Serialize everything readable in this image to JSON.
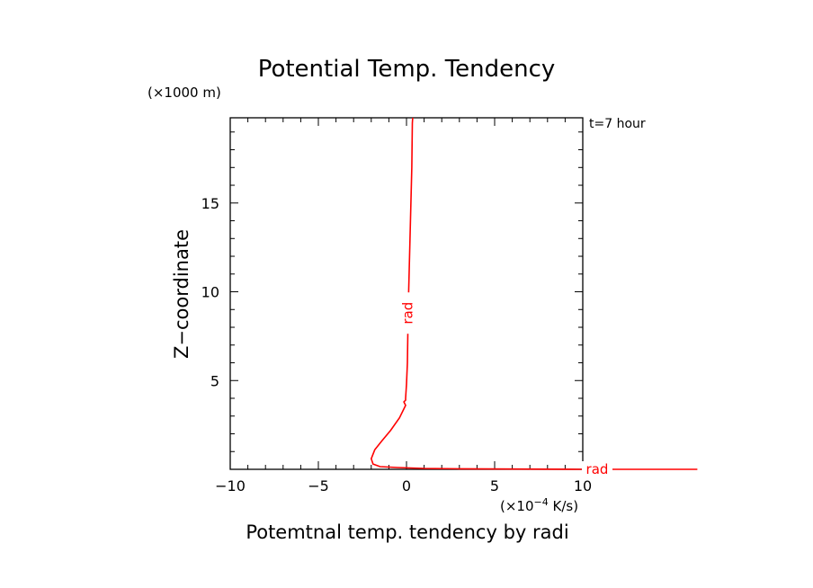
{
  "chart_data": {
    "type": "line",
    "title": "Potential Temp. Tendency",
    "y_unit_label": "(×1000 m)",
    "time_label": "t=7 hour",
    "ylabel": "Z−coordinate",
    "xlabel": "Potemtnal temp. tendency by radi",
    "x_unit_label": "(×10",
    "x_unit_exp": "−4",
    "x_unit_tail": " K/s)",
    "xlim": [
      -10,
      10
    ],
    "ylim": [
      0,
      19.8
    ],
    "x_ticks": [
      -10,
      -5,
      0,
      5,
      10
    ],
    "x_tick_labels": [
      "−10",
      "−5",
      "0",
      "5",
      "10"
    ],
    "y_ticks": [
      5,
      10,
      15
    ],
    "y_tick_labels": [
      "5",
      "10",
      "15"
    ],
    "grid": false,
    "series": [
      {
        "name": "rad",
        "color": "#ff0000",
        "line_label": "rad",
        "end_label": "rad",
        "x": [
          0.35,
          0.33,
          0.3,
          0.25,
          0.2,
          0.15,
          0.12,
          0.1,
          0.08,
          0.05,
          0.0,
          -0.05,
          -0.05,
          -0.15,
          -0.05,
          -0.4,
          -0.9,
          -1.4,
          -1.8,
          -2.0,
          -1.9,
          -1.5,
          -0.5,
          1.0,
          3.0,
          4.7,
          10.0,
          16.5
        ],
        "y": [
          19.8,
          19.5,
          17.0,
          15.0,
          13.0,
          11.0,
          10.0,
          9.0,
          8.0,
          6.0,
          4.8,
          4.0,
          3.9,
          3.8,
          3.6,
          2.9,
          2.2,
          1.6,
          1.1,
          0.6,
          0.3,
          0.15,
          0.1,
          0.05,
          0.03,
          0.02,
          0.0,
          0.0
        ]
      }
    ]
  }
}
